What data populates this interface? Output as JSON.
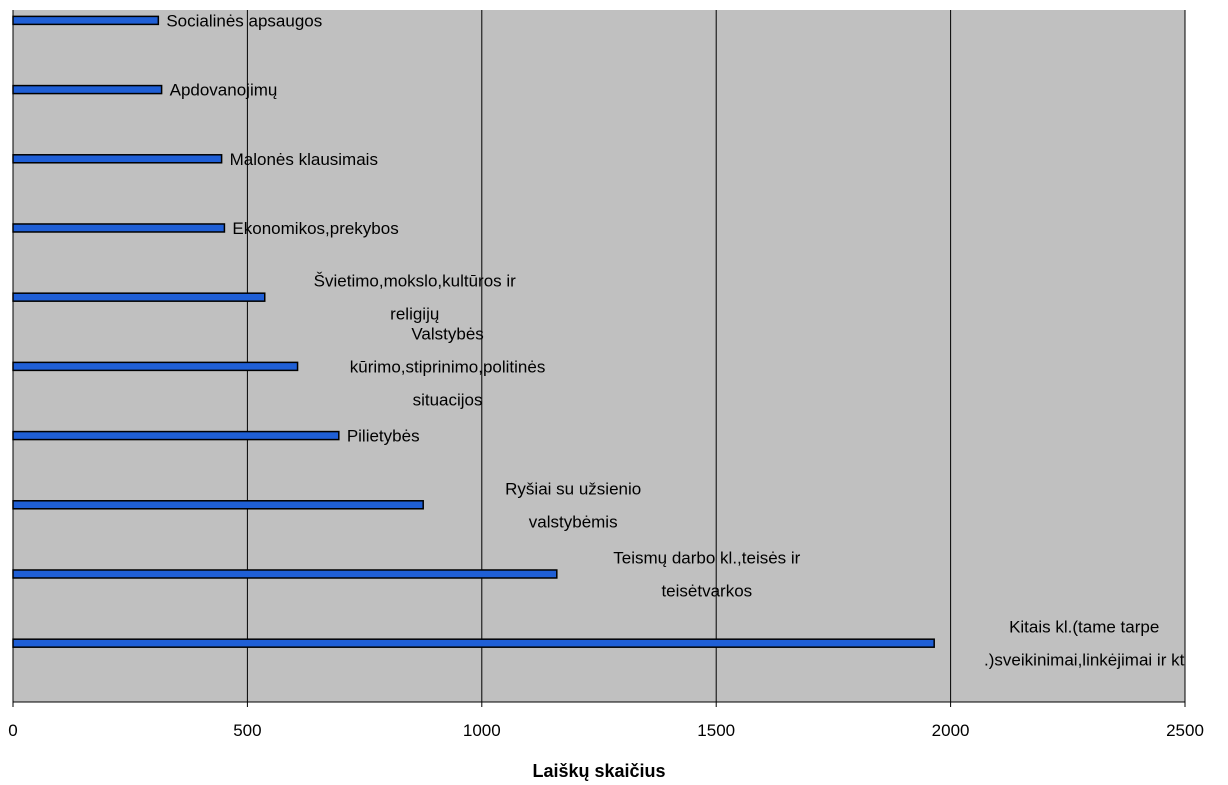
{
  "chart_data": {
    "type": "bar",
    "orientation": "horizontal",
    "xlabel": "Laiškų skaičius",
    "ylabel": "",
    "title": "",
    "xlim": [
      0,
      2500
    ],
    "x_ticks": [
      "0",
      "500",
      "1000",
      "1500",
      "2000",
      "2500"
    ],
    "grid": "vertical",
    "legend": "none",
    "colors": {
      "bar": "#1f5fd6",
      "bar_edge": "#000000",
      "plot_bg": "#c0c0c0",
      "grid": "#000000"
    },
    "bars": [
      {
        "label_lines": [
          "Socialinės apsaugos"
        ],
        "value": 310
      },
      {
        "label_lines": [
          "Apdovanojimų"
        ],
        "value": 317
      },
      {
        "label_lines": [
          "Malonės klausimais"
        ],
        "value": 445
      },
      {
        "label_lines": [
          "Ekonomikos,prekybos"
        ],
        "value": 451
      },
      {
        "label_lines": [
          "Švietimo,mokslo,kultūros ir",
          "religijų"
        ],
        "value": 537
      },
      {
        "label_lines": [
          "Valstybės",
          "kūrimo,stiprinimo,politinės",
          "situacijos"
        ],
        "value": 607
      },
      {
        "label_lines": [
          "Pilietybės"
        ],
        "value": 695
      },
      {
        "label_lines": [
          "Ryšiai su užsienio",
          "valstybėmis"
        ],
        "value": 875
      },
      {
        "label_lines": [
          "Teismų darbo kl.,teisės ir",
          "teisėtvarkos"
        ],
        "value": 1160
      },
      {
        "label_lines": [
          "Kitais kl.(tame tarpe",
          ".)sveikinimai,linkėjimai ir kt"
        ],
        "value": 1965
      }
    ]
  }
}
